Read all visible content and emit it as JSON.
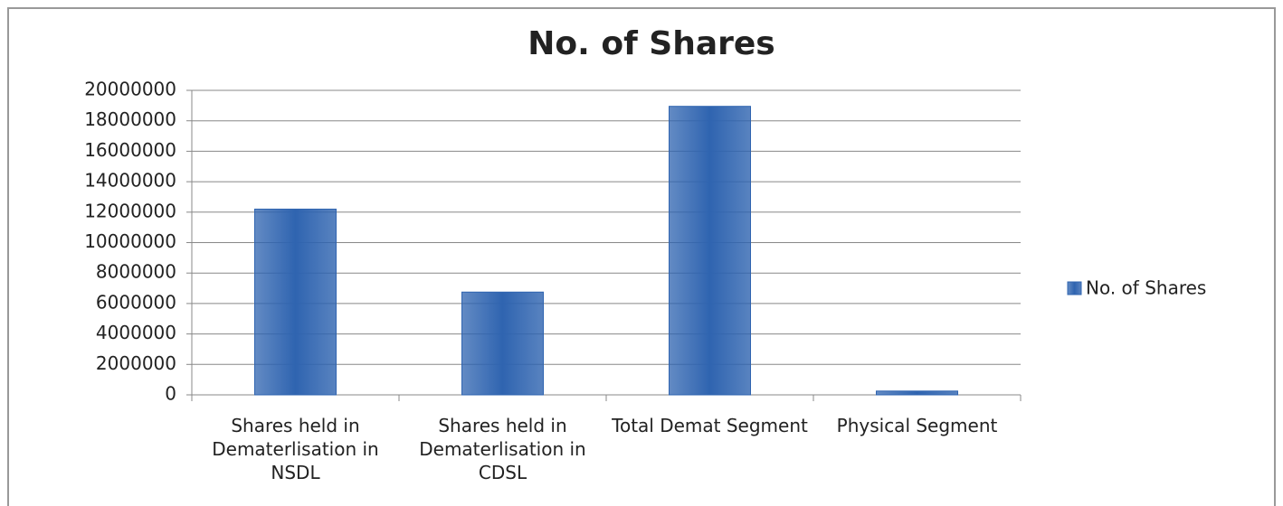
{
  "chart_data": {
    "type": "bar",
    "title": "No. of Shares",
    "categories": [
      "Shares held in Dematerlisation in NSDL",
      "Shares held in Dematerlisation in CDSL",
      "Total Demat Segment",
      "Physical Segment"
    ],
    "series": [
      {
        "name": "No. of Shares",
        "color": "#2f64b0",
        "values": [
          12200000,
          6750000,
          18950000,
          250000
        ]
      }
    ],
    "ylim": [
      0,
      20000000
    ],
    "yticks": [
      0,
      2000000,
      4000000,
      6000000,
      8000000,
      10000000,
      12000000,
      14000000,
      16000000,
      18000000,
      20000000
    ],
    "grid": true,
    "legend": "right"
  }
}
